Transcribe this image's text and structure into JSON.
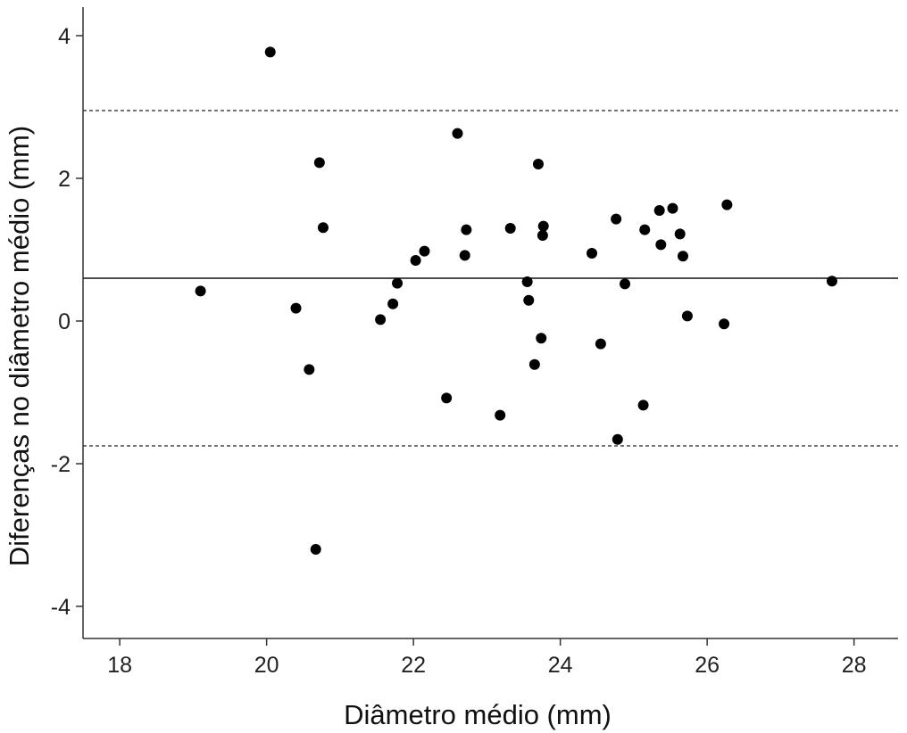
{
  "chart_data": {
    "type": "scatter",
    "title": "",
    "xlabel": "Diâmetro médio (mm)",
    "ylabel": "Diferenças no diâmetro médio (mm)",
    "xlim": [
      17.5,
      28.6
    ],
    "ylim": [
      -4.45,
      4.4
    ],
    "xticks": [
      18,
      20,
      22,
      24,
      26,
      28
    ],
    "yticks": [
      -4,
      -2,
      0,
      2,
      4
    ],
    "grid": false,
    "reference_lines": {
      "mean": 0.6,
      "upper_limit": 2.95,
      "lower_limit": -1.75
    },
    "points": [
      {
        "x": 19.1,
        "y": 0.42
      },
      {
        "x": 20.05,
        "y": 3.77
      },
      {
        "x": 20.4,
        "y": 0.18
      },
      {
        "x": 20.58,
        "y": -0.68
      },
      {
        "x": 20.67,
        "y": -3.2
      },
      {
        "x": 20.72,
        "y": 2.22
      },
      {
        "x": 20.77,
        "y": 1.31
      },
      {
        "x": 21.55,
        "y": 0.02
      },
      {
        "x": 21.72,
        "y": 0.24
      },
      {
        "x": 21.78,
        "y": 0.53
      },
      {
        "x": 22.03,
        "y": 0.85
      },
      {
        "x": 22.15,
        "y": 0.98
      },
      {
        "x": 22.45,
        "y": -1.08
      },
      {
        "x": 22.6,
        "y": 2.63
      },
      {
        "x": 22.7,
        "y": 0.92
      },
      {
        "x": 22.72,
        "y": 1.28
      },
      {
        "x": 23.18,
        "y": -1.32
      },
      {
        "x": 23.32,
        "y": 1.3
      },
      {
        "x": 23.55,
        "y": 0.55
      },
      {
        "x": 23.57,
        "y": 0.29
      },
      {
        "x": 23.65,
        "y": -0.61
      },
      {
        "x": 23.7,
        "y": 2.2
      },
      {
        "x": 23.74,
        "y": -0.24
      },
      {
        "x": 23.76,
        "y": 1.2
      },
      {
        "x": 23.77,
        "y": 1.33
      },
      {
        "x": 24.43,
        "y": 0.95
      },
      {
        "x": 24.55,
        "y": -0.32
      },
      {
        "x": 24.76,
        "y": 1.43
      },
      {
        "x": 24.78,
        "y": -1.66
      },
      {
        "x": 24.88,
        "y": 0.52
      },
      {
        "x": 25.13,
        "y": -1.18
      },
      {
        "x": 25.15,
        "y": 1.28
      },
      {
        "x": 25.35,
        "y": 1.55
      },
      {
        "x": 25.37,
        "y": 1.07
      },
      {
        "x": 25.53,
        "y": 1.58
      },
      {
        "x": 25.63,
        "y": 1.22
      },
      {
        "x": 25.67,
        "y": 0.91
      },
      {
        "x": 25.73,
        "y": 0.07
      },
      {
        "x": 26.23,
        "y": -0.04
      },
      {
        "x": 26.27,
        "y": 1.63
      },
      {
        "x": 27.7,
        "y": 0.56
      }
    ]
  }
}
